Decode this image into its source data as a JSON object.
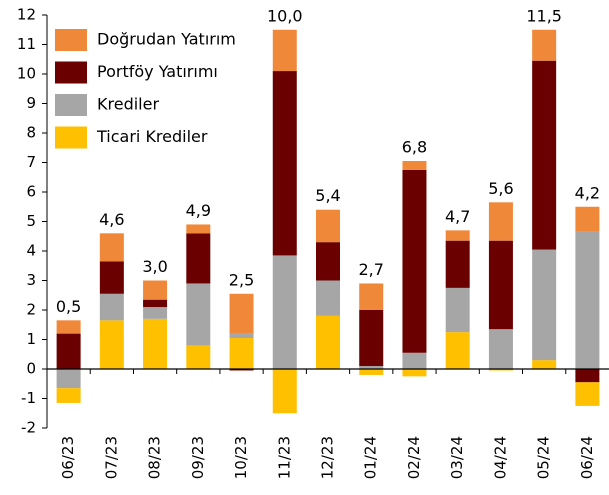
{
  "chart_data": {
    "type": "stacked_bar",
    "categories": [
      "06/23",
      "07/23",
      "08/23",
      "09/23",
      "10/23",
      "11/23",
      "12/23",
      "01/24",
      "02/24",
      "03/24",
      "04/24",
      "05/24",
      "06/24"
    ],
    "series": [
      {
        "name": "Ticari Krediler",
        "color": "#ffc000",
        "values": [
          -0.5,
          1.65,
          1.7,
          0.8,
          1.05,
          -1.5,
          1.8,
          -0.2,
          -0.25,
          1.25,
          -0.05,
          0.3,
          -0.8
        ]
      },
      {
        "name": "Krediler",
        "color": "#a6a6a6",
        "values": [
          -0.65,
          0.9,
          0.4,
          2.1,
          0.15,
          3.85,
          1.2,
          0.1,
          0.55,
          1.5,
          1.35,
          3.75,
          4.65
        ]
      },
      {
        "name": "Portföy Yatırımı",
        "color": "#6b0000",
        "values": [
          1.2,
          1.1,
          0.25,
          1.7,
          -0.05,
          6.25,
          1.3,
          1.9,
          6.2,
          1.6,
          3.0,
          6.4,
          -0.45
        ]
      },
      {
        "name": "Doğrudan Yatırım",
        "color": "#f0883a",
        "values": [
          0.45,
          0.95,
          0.65,
          0.3,
          1.35,
          1.4,
          1.1,
          0.9,
          0.3,
          0.35,
          1.3,
          1.05,
          0.85
        ]
      }
    ],
    "total_labels": [
      "0,5",
      "4,6",
      "3,0",
      "4,9",
      "2,5",
      "10,0",
      "5,4",
      "2,7",
      "6,8",
      "4,7",
      "5,6",
      "11,5",
      "4,2"
    ],
    "ylim": [
      -2,
      12
    ],
    "yticks": [
      -2,
      -1,
      0,
      1,
      2,
      3,
      4,
      5,
      6,
      7,
      8,
      9,
      10,
      11,
      12
    ],
    "legend": "upper left"
  }
}
